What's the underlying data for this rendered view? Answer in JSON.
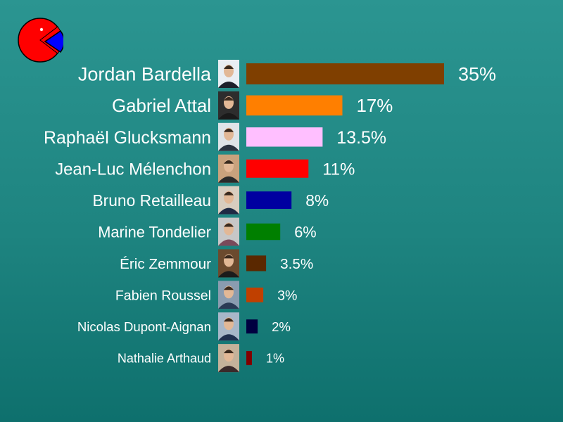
{
  "chart_data": {
    "type": "bar",
    "orientation": "horizontal",
    "categories": [
      "Jordan Bardella",
      "Gabriel Attal",
      "Raphaël Glucksmann",
      "Jean-Luc Mélenchon",
      "Bruno Retailleau",
      "Marine Tondelier",
      "Éric Zemmour",
      "Fabien Roussel",
      "Nicolas Dupont-Aignan",
      "Nathalie Arthaud"
    ],
    "values": [
      35,
      17,
      13.5,
      11,
      8,
      6,
      3.5,
      3,
      2,
      1
    ],
    "value_labels": [
      "35%",
      "17%",
      "13.5%",
      "11%",
      "8%",
      "6%",
      "3.5%",
      "3%",
      "2%",
      "1%"
    ],
    "colors": [
      "#7f3f00",
      "#ff7f00",
      "#ffbfff",
      "#ff0000",
      "#0000a0",
      "#007f00",
      "#5a2800",
      "#c04000",
      "#000040",
      "#800000"
    ],
    "title": "",
    "xlabel": "",
    "ylabel": "",
    "grid": false,
    "legend": "none",
    "row_icons": "candidate-portrait-photo"
  },
  "logo": {
    "icon": "pie-chart-logo-icon",
    "colors": [
      "#ff0000",
      "#0000ff"
    ]
  }
}
